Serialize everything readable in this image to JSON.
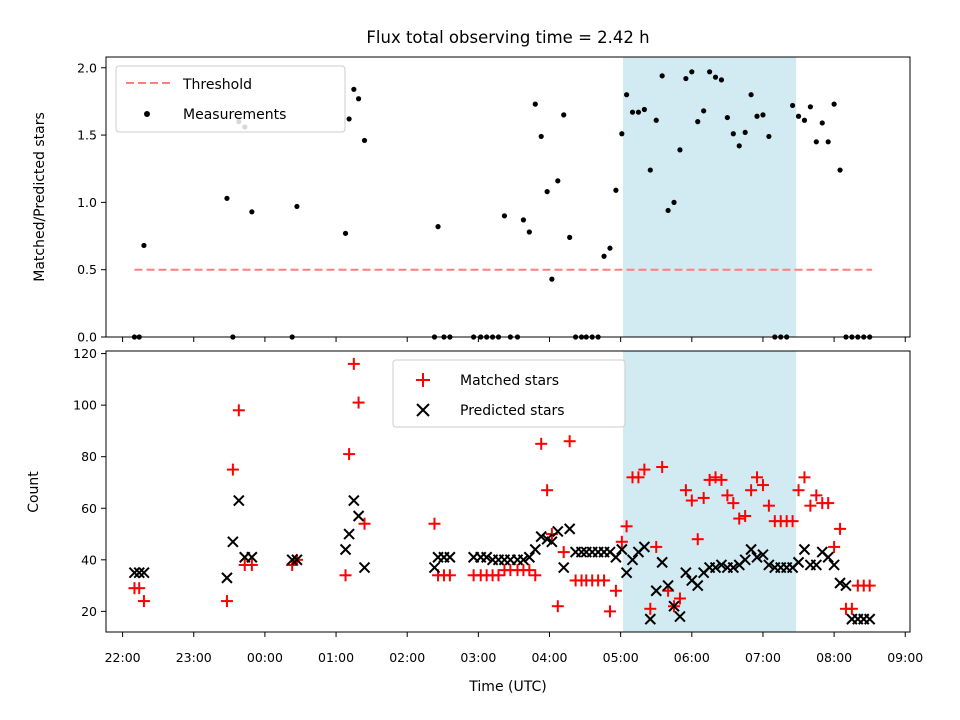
{
  "chart_data": [
    {
      "type": "scatter",
      "title": "Flux total observing time = 2.42 h",
      "xlabel": "",
      "ylabel": "Matched/Predicted stars",
      "xlim": [
        "21:46",
        "09:04"
      ],
      "ylim": [
        0,
        2.08
      ],
      "yticks": [
        "0.0",
        "0.5",
        "1.0",
        "1.5",
        "2.0"
      ],
      "highlight_span": [
        "05:02",
        "07:28"
      ],
      "highlight_color": "#add8e6",
      "legend": {
        "placement": "upper left",
        "entries": [
          "Threshold",
          "Measurements"
        ]
      },
      "series": [
        {
          "name": "Threshold",
          "style": "dashed-line",
          "color": "#ff7f7f",
          "x": [
            "22:10",
            "08:32"
          ],
          "y": [
            0.5,
            0.5
          ]
        },
        {
          "name": "Measurements",
          "style": "dot",
          "color": "#000000",
          "x": [
            "22:10",
            "22:14",
            "22:18",
            "23:28",
            "23:33",
            "23:38",
            "23:43",
            "23:49",
            "00:23",
            "00:27",
            "01:08",
            "01:11",
            "01:15",
            "01:19",
            "01:24",
            "02:23",
            "02:26",
            "02:31",
            "02:36",
            "02:56",
            "03:02",
            "03:07",
            "03:12",
            "03:17",
            "03:22",
            "03:27",
            "03:33",
            "03:38",
            "03:43",
            "03:48",
            "03:53",
            "03:58",
            "04:02",
            "04:07",
            "04:12",
            "04:17",
            "04:22",
            "04:27",
            "04:31",
            "04:36",
            "04:41",
            "04:46",
            "04:51",
            "04:56",
            "05:01",
            "05:05",
            "05:10",
            "05:15",
            "05:20",
            "05:25",
            "05:30",
            "05:35",
            "05:40",
            "05:45",
            "05:50",
            "05:55",
            "06:00",
            "06:05",
            "06:10",
            "06:15",
            "06:20",
            "06:25",
            "06:30",
            "06:35",
            "06:40",
            "06:45",
            "06:50",
            "06:55",
            "07:00",
            "07:05",
            "07:10",
            "07:15",
            "07:20",
            "07:25",
            "07:30",
            "07:35",
            "07:40",
            "07:45",
            "07:50",
            "07:55",
            "08:00",
            "08:05",
            "08:10",
            "08:15",
            "08:20",
            "08:25",
            "08:30"
          ],
          "y": [
            0.0,
            0.0,
            0.68,
            1.03,
            0.0,
            1.6,
            1.56,
            0.93,
            0.0,
            0.97,
            0.77,
            1.62,
            1.84,
            1.77,
            1.46,
            0.0,
            0.82,
            0.0,
            0.0,
            0.0,
            0.0,
            0.0,
            0.0,
            0.0,
            0.9,
            0.0,
            0.0,
            0.87,
            0.78,
            1.73,
            1.49,
            1.08,
            0.43,
            1.16,
            1.65,
            0.74,
            0.0,
            0.0,
            0.0,
            0.0,
            0.0,
            0.6,
            0.66,
            1.09,
            1.51,
            1.8,
            1.67,
            1.67,
            1.69,
            1.24,
            1.61,
            1.94,
            0.94,
            1.0,
            1.39,
            1.92,
            1.97,
            1.6,
            1.68,
            1.97,
            1.93,
            1.91,
            1.63,
            1.51,
            1.42,
            1.52,
            1.8,
            1.64,
            1.65,
            1.49,
            0.0,
            0.0,
            0.0,
            1.72,
            1.64,
            1.61,
            1.71,
            1.45,
            1.59,
            1.45,
            1.73,
            1.24,
            0.0,
            0.0,
            0.0,
            0.0,
            0.0
          ]
        }
      ]
    },
    {
      "type": "scatter",
      "title": "",
      "xlabel": "Time (UTC)",
      "ylabel": "Count",
      "xlim": [
        "21:46",
        "09:04"
      ],
      "ylim": [
        12,
        121
      ],
      "yticks": [
        "20",
        "40",
        "60",
        "80",
        "100",
        "120"
      ],
      "xticks": [
        "22:00",
        "23:00",
        "00:00",
        "01:00",
        "02:00",
        "03:00",
        "04:00",
        "05:00",
        "06:00",
        "07:00",
        "08:00",
        "09:00"
      ],
      "highlight_span": [
        "05:02",
        "07:28"
      ],
      "highlight_color": "#add8e6",
      "legend": {
        "placement": "upper center",
        "entries": [
          "Matched stars",
          "Predicted stars"
        ]
      },
      "series": [
        {
          "name": "Matched stars",
          "marker": "+",
          "color": "#ff0000",
          "x": [
            "22:10",
            "22:14",
            "22:18",
            "23:28",
            "23:33",
            "23:38",
            "23:43",
            "23:49",
            "00:23",
            "00:27",
            "01:08",
            "01:11",
            "01:15",
            "01:19",
            "01:24",
            "02:23",
            "02:26",
            "02:31",
            "02:36",
            "02:56",
            "03:02",
            "03:07",
            "03:12",
            "03:17",
            "03:22",
            "03:27",
            "03:33",
            "03:38",
            "03:43",
            "03:48",
            "03:53",
            "03:58",
            "04:02",
            "04:07",
            "04:12",
            "04:17",
            "04:22",
            "04:27",
            "04:31",
            "04:36",
            "04:41",
            "04:46",
            "04:51",
            "04:56",
            "05:01",
            "05:05",
            "05:10",
            "05:15",
            "05:20",
            "05:25",
            "05:30",
            "05:35",
            "05:40",
            "05:45",
            "05:50",
            "05:55",
            "06:00",
            "06:05",
            "06:10",
            "06:15",
            "06:20",
            "06:25",
            "06:30",
            "06:35",
            "06:40",
            "06:45",
            "06:50",
            "06:55",
            "07:00",
            "07:05",
            "07:10",
            "07:15",
            "07:20",
            "07:25",
            "07:30",
            "07:35",
            "07:40",
            "07:45",
            "07:50",
            "07:55",
            "08:00",
            "08:05",
            "08:10",
            "08:15",
            "08:20",
            "08:25",
            "08:30"
          ],
          "y": [
            29,
            29,
            24,
            24,
            75,
            98,
            38,
            38,
            38,
            40,
            34,
            81,
            116,
            101,
            54,
            54,
            34,
            34,
            34,
            34,
            34,
            34,
            34,
            34,
            36,
            36,
            36,
            36,
            36,
            34,
            85,
            67,
            50,
            22,
            43,
            86,
            32,
            32,
            32,
            32,
            32,
            32,
            20,
            28,
            47,
            53,
            72,
            72,
            75,
            21,
            45,
            76,
            28,
            22,
            25,
            67,
            63,
            48,
            64,
            71,
            72,
            71,
            65,
            62,
            56,
            57,
            67,
            72,
            69,
            61,
            55,
            55,
            55,
            55,
            67,
            72,
            61,
            65,
            62,
            62,
            45,
            52,
            21,
            21,
            30,
            30,
            30
          ]
        },
        {
          "name": "Predicted stars",
          "marker": "x",
          "color": "#000000",
          "x": [
            "22:10",
            "22:14",
            "22:18",
            "23:28",
            "23:33",
            "23:38",
            "23:43",
            "23:49",
            "00:23",
            "00:27",
            "01:08",
            "01:11",
            "01:15",
            "01:19",
            "01:24",
            "02:23",
            "02:26",
            "02:31",
            "02:36",
            "02:56",
            "03:02",
            "03:07",
            "03:12",
            "03:17",
            "03:22",
            "03:27",
            "03:33",
            "03:38",
            "03:43",
            "03:48",
            "03:53",
            "03:58",
            "04:02",
            "04:07",
            "04:12",
            "04:17",
            "04:22",
            "04:27",
            "04:31",
            "04:36",
            "04:41",
            "04:46",
            "04:51",
            "04:56",
            "05:01",
            "05:05",
            "05:10",
            "05:15",
            "05:20",
            "05:25",
            "05:30",
            "05:35",
            "05:40",
            "05:45",
            "05:50",
            "05:55",
            "06:00",
            "06:05",
            "06:10",
            "06:15",
            "06:20",
            "06:25",
            "06:30",
            "06:35",
            "06:40",
            "06:45",
            "06:50",
            "06:55",
            "07:00",
            "07:05",
            "07:10",
            "07:15",
            "07:20",
            "07:25",
            "07:30",
            "07:35",
            "07:40",
            "07:45",
            "07:50",
            "07:55",
            "08:00",
            "08:05",
            "08:10",
            "08:15",
            "08:20",
            "08:25",
            "08:30"
          ],
          "y": [
            35,
            35,
            35,
            33,
            47,
            63,
            41,
            41,
            40,
            40,
            44,
            50,
            63,
            57,
            37,
            37,
            41,
            41,
            41,
            41,
            41,
            41,
            40,
            40,
            40,
            40,
            40,
            40,
            41,
            44,
            49,
            48,
            47,
            51,
            37,
            52,
            43,
            43,
            43,
            43,
            43,
            43,
            43,
            41,
            44,
            35,
            40,
            43,
            45,
            17,
            28,
            39,
            30,
            22,
            18,
            35,
            32,
            30,
            35,
            37,
            37,
            38,
            37,
            37,
            38,
            40,
            44,
            41,
            42,
            38,
            37,
            37,
            37,
            37,
            39,
            44,
            38,
            38,
            43,
            41,
            38,
            31,
            30,
            17,
            17,
            17,
            17
          ]
        }
      ]
    }
  ]
}
